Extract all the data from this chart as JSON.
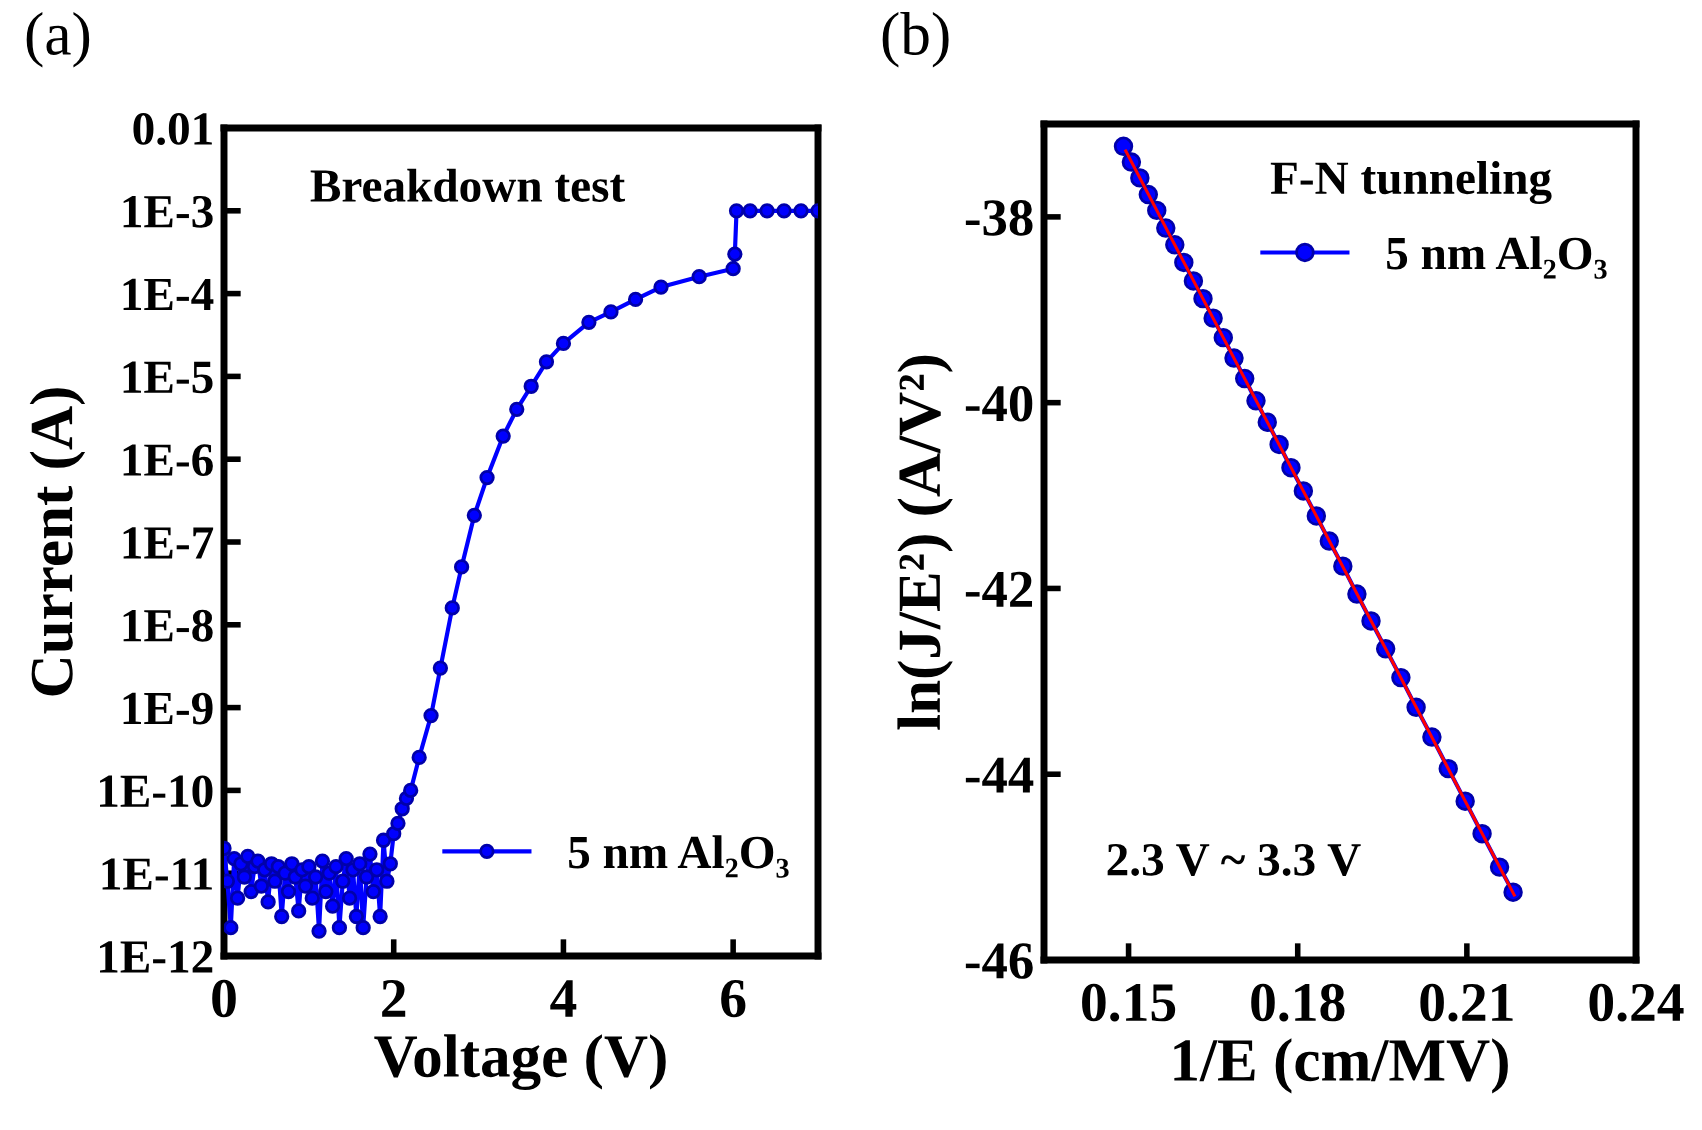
{
  "chart_data": [
    {
      "type": "line",
      "annotations": [
        "(a)",
        "Breakdown test"
      ],
      "xlabel": "Voltage (V)",
      "ylabel": "Current (A)",
      "log": "y",
      "xlim": [
        0,
        7
      ],
      "xticks": [
        0,
        2,
        4,
        6
      ],
      "ylim": [
        1e-12,
        0.01
      ],
      "yticks": [
        {
          "value": 1e-12,
          "label": "1E-12"
        },
        {
          "value": 1e-11,
          "label": "1E-11"
        },
        {
          "value": 1e-10,
          "label": "1E-10"
        },
        {
          "value": 1e-09,
          "label": "1E-9"
        },
        {
          "value": 1e-08,
          "label": "1E-8"
        },
        {
          "value": 1e-07,
          "label": "1E-7"
        },
        {
          "value": 1e-06,
          "label": "1E-6"
        },
        {
          "value": 1e-05,
          "label": "1E-5"
        },
        {
          "value": 0.0001,
          "label": "1E-4"
        },
        {
          "value": 0.001,
          "label": "1E-3"
        },
        0.01
      ],
      "legend": "bottom right",
      "marker": "circle",
      "grid": false,
      "series": [
        {
          "name": "5 nm Al₂O₃",
          "color": "#0000ff",
          "x": [
            0,
            0.04,
            0.08,
            0.12,
            0.16,
            0.2,
            0.24,
            0.28,
            0.32,
            0.36,
            0.4,
            0.44,
            0.48,
            0.52,
            0.56,
            0.6,
            0.64,
            0.68,
            0.72,
            0.76,
            0.8,
            0.84,
            0.88,
            0.92,
            0.96,
            1.0,
            1.04,
            1.08,
            1.12,
            1.16,
            1.2,
            1.24,
            1.28,
            1.32,
            1.36,
            1.4,
            1.44,
            1.48,
            1.52,
            1.56,
            1.6,
            1.64,
            1.68,
            1.72,
            1.76,
            1.8,
            1.84,
            1.88,
            1.92,
            1.96,
            2.0,
            2.05,
            2.1,
            2.15,
            2.2,
            2.3,
            2.44,
            2.55,
            2.69,
            2.8,
            2.95,
            3.1,
            3.29,
            3.45,
            3.62,
            3.8,
            4.0,
            4.3,
            4.56,
            4.85,
            5.15,
            5.6,
            6.0,
            6.02,
            6.04,
            6.2,
            6.4,
            6.6,
            6.8,
            7.0
          ],
          "values": [
            2e-11,
            8e-12,
            2.2e-12,
            1.5e-11,
            5e-12,
            1.3e-11,
            9e-12,
            1.6e-11,
            6e-12,
            1.2e-11,
            1.4e-11,
            7e-12,
            1.1e-11,
            4.5e-12,
            1.3e-11,
            8e-12,
            1.2e-11,
            3e-12,
            1e-11,
            6e-12,
            1.3e-11,
            9e-12,
            3.5e-12,
            1.1e-11,
            7e-12,
            1.2e-11,
            5e-12,
            9e-12,
            2e-12,
            1.4e-11,
            6e-12,
            1e-11,
            4e-12,
            1.2e-11,
            2.2e-12,
            8e-12,
            1.5e-11,
            5e-12,
            1.1e-11,
            3e-12,
            1.3e-11,
            2.2e-12,
            9e-12,
            1.7e-11,
            6e-12,
            1.1e-11,
            3e-12,
            2.5e-11,
            8e-12,
            1.3e-11,
            3e-11,
            4e-11,
            6e-11,
            8e-11,
            1e-10,
            2.5e-10,
            8e-10,
            3e-09,
            1.6e-08,
            5e-08,
            2.1e-07,
            6e-07,
            1.9e-06,
            4e-06,
            7.6e-06,
            1.5e-05,
            2.5e-05,
            4.5e-05,
            6e-05,
            8.5e-05,
            0.00012,
            0.00016,
            0.0002,
            0.0003,
            0.001,
            0.001,
            0.001,
            0.001,
            0.001,
            0.001
          ]
        }
      ]
    },
    {
      "type": "line",
      "annotations": [
        "(b)",
        "F-N tunneling",
        "2.3 V ~ 3.3 V"
      ],
      "xlabel": "1/E (cm/MV)",
      "ylabel": "ln(J/E²) (A/V²)",
      "xlim": [
        0.135,
        0.24
      ],
      "xticks": [
        0.15,
        0.18,
        0.21,
        0.24
      ],
      "ylim": [
        -46,
        -37
      ],
      "yticks": [
        -46,
        -44,
        -42,
        -40,
        -38
      ],
      "legend": "top right",
      "marker": "circle",
      "grid": false,
      "series": [
        {
          "name": "5 nm Al₂O₃",
          "color": "#0000ff",
          "x": [
            0.1491,
            0.1505,
            0.152,
            0.1535,
            0.155,
            0.1566,
            0.1582,
            0.1598,
            0.1615,
            0.1632,
            0.165,
            0.1668,
            0.1687,
            0.1706,
            0.1726,
            0.1746,
            0.1767,
            0.1788,
            0.181,
            0.1833,
            0.1856,
            0.188,
            0.1905,
            0.193,
            0.1956,
            0.1983,
            0.201,
            0.2038,
            0.2067,
            0.2097,
            0.2127,
            0.2158,
            0.2182
          ],
          "values": [
            -37.24,
            -37.41,
            -37.58,
            -37.76,
            -37.93,
            -38.12,
            -38.3,
            -38.49,
            -38.69,
            -38.88,
            -39.09,
            -39.3,
            -39.52,
            -39.74,
            -39.98,
            -40.21,
            -40.45,
            -40.7,
            -40.95,
            -41.22,
            -41.49,
            -41.76,
            -42.06,
            -42.35,
            -42.65,
            -42.96,
            -43.28,
            -43.6,
            -43.94,
            -44.29,
            -44.64,
            -45.0,
            -45.27
          ]
        },
        {
          "color": "#ff0000",
          "marker": "none",
          "x": [
            0.1495,
            0.2184
          ],
          "values": [
            -37.29,
            -45.3
          ]
        }
      ]
    }
  ]
}
